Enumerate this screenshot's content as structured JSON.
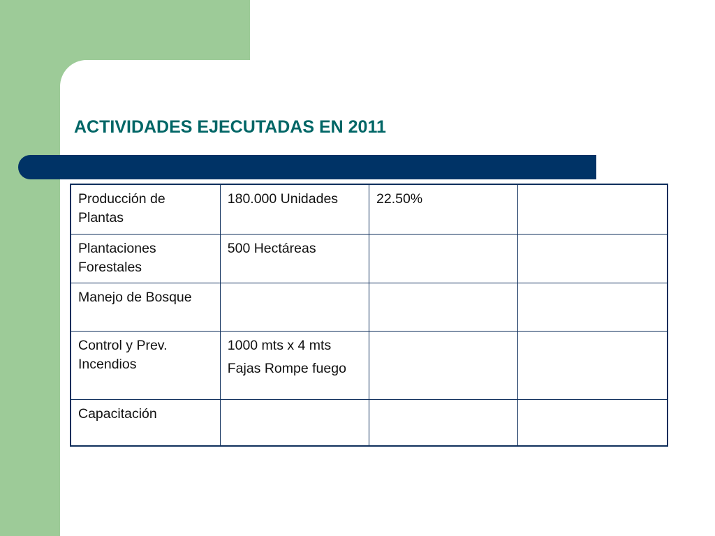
{
  "slide": {
    "title": "ACTIVIDADES EJECUTADAS EN 2011",
    "colors": {
      "title": "#006666",
      "bar": "#003366",
      "side_band": "#9dcb98",
      "table_border": "#0f2f5c"
    }
  },
  "table": {
    "rows": [
      {
        "activity": "Producción de Plantas",
        "amount": [
          "180.000 Unidades"
        ],
        "percent": "22.50%",
        "extra": ""
      },
      {
        "activity": "Plantaciones Forestales",
        "amount": [
          "500 Hectáreas"
        ],
        "percent": "",
        "extra": ""
      },
      {
        "activity": "Manejo de Bosque",
        "amount": [
          ""
        ],
        "percent": "",
        "extra": ""
      },
      {
        "activity": "Control y Prev. Incendios",
        "amount": [
          "1000 mts x 4 mts",
          "Fajas Rompe fuego"
        ],
        "percent": "",
        "extra": ""
      },
      {
        "activity": "Capacitación",
        "amount": [
          ""
        ],
        "percent": "",
        "extra": ""
      }
    ]
  }
}
